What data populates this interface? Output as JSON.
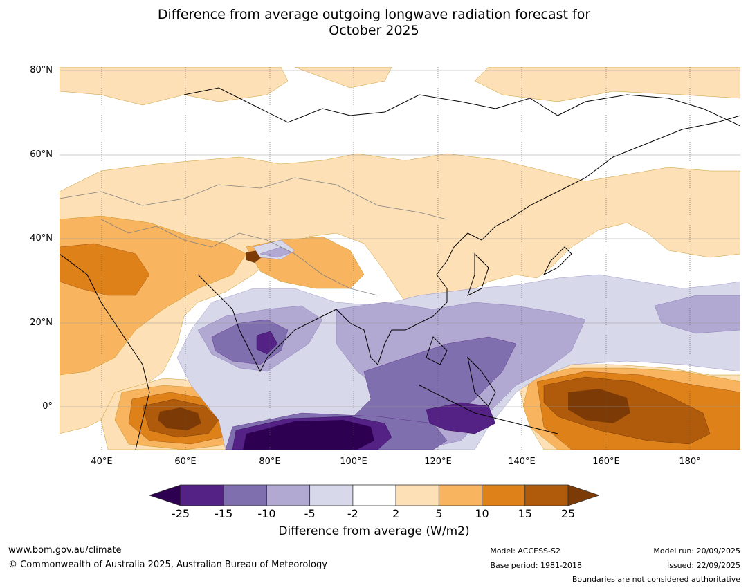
{
  "title": {
    "line1": "Difference from average outgoing longwave radiation forecast for",
    "line2": "October 2025"
  },
  "map": {
    "lat_labels": [
      "80°N",
      "60°N",
      "40°N",
      "20°N",
      "0°"
    ],
    "lon_labels": [
      "40°E",
      "60°E",
      "80°E",
      "100°E",
      "120°E",
      "140°E",
      "160°E",
      "180°"
    ],
    "lon_range": [
      30,
      192
    ],
    "lat_range": [
      -10,
      81
    ]
  },
  "colorbar": {
    "ticks": [
      "-25",
      "-15",
      "-10",
      "-5",
      "-2",
      "2",
      "5",
      "10",
      "15",
      "25"
    ],
    "colors": [
      "#2d0052",
      "#542185",
      "#7f6fae",
      "#b1a9d1",
      "#d8d8eb",
      "#ffffff",
      "#fde0b5",
      "#f8b45e",
      "#de8119",
      "#b05b0b",
      "#7c3b06"
    ],
    "title": "Difference from average (W/m2)"
  },
  "footer": {
    "website": "www.bom.gov.au/climate",
    "copyright": "© Commonwealth of Australia 2025, Australian Bureau of Meteorology",
    "model": "Model: ACCESS-S2",
    "base_period": "Base period: 1981-2018",
    "model_run": "Model run: 20/09/2025",
    "issued": "Issued: 22/09/2025",
    "disclaimer": "Boundaries are not considered authoritative"
  }
}
